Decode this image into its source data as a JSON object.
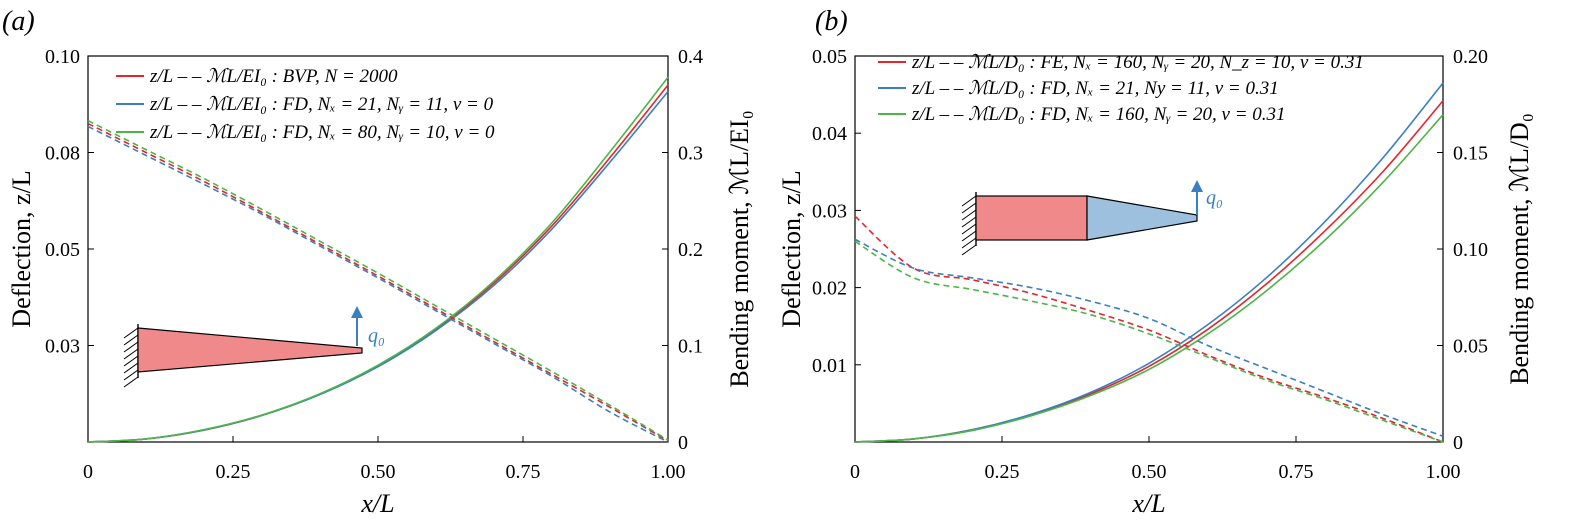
{
  "chart_data": [
    {
      "type": "line",
      "panel_label": "(a)",
      "xlabel": "x/L",
      "ylabel_left": "Deflection, z/L",
      "ylabel_right": "Bending moment, ℳL/EI₀",
      "xlim": [
        0,
        1.0
      ],
      "ylim_left": [
        0,
        0.1
      ],
      "ylim_right": [
        0,
        0.4
      ],
      "x_ticks": [
        "0",
        "0.25",
        "0.50",
        "0.75",
        "1.00"
      ],
      "x_tick_values": [
        0,
        0.25,
        0.5,
        0.75,
        1.0
      ],
      "y_left_ticks": [
        "0.03",
        "0.05",
        "0.08",
        "0.10"
      ],
      "y_left_tick_values": [
        0.025,
        0.05,
        0.075,
        0.1
      ],
      "y_right_ticks": [
        "0",
        "0.1",
        "0.2",
        "0.3",
        "0.4"
      ],
      "y_right_tick_values": [
        0,
        0.1,
        0.2,
        0.3,
        0.4
      ],
      "legend": [
        {
          "text": "z/L  – – ℳL/EI₀ : BVP, N = 2000",
          "color": "#e3262b"
        },
        {
          "text": "z/L  – – ℳL/EI₀ : FD, Nₓ = 21, Nᵧ = 11, ν = 0",
          "color": "#3a7fc1"
        },
        {
          "text": "z/L  – – ℳL/EI₀ : FD, Nₓ = 80, Nᵧ = 10, ν = 0",
          "color": "#4cb548"
        }
      ],
      "x": [
        0,
        0.1,
        0.2,
        0.3,
        0.4,
        0.5,
        0.6,
        0.7,
        0.8,
        0.9,
        1.0
      ],
      "series": [
        {
          "name": "BVP deflection",
          "axis": "left",
          "style": "solid",
          "color": "#e3262b",
          "values": [
            0,
            0.0008,
            0.0031,
            0.0069,
            0.0124,
            0.0197,
            0.0292,
            0.0412,
            0.056,
            0.0737,
            0.0925
          ]
        },
        {
          "name": "FD Nx=21 deflection",
          "axis": "left",
          "style": "solid",
          "color": "#3a7fc1",
          "values": [
            0,
            0.0008,
            0.0031,
            0.0069,
            0.0123,
            0.0195,
            0.0289,
            0.0406,
            0.0552,
            0.0725,
            0.0908
          ]
        },
        {
          "name": "FD Nx=80 deflection",
          "axis": "left",
          "style": "solid",
          "color": "#4cb548",
          "values": [
            0,
            0.0008,
            0.0032,
            0.007,
            0.0125,
            0.0199,
            0.0295,
            0.0417,
            0.0568,
            0.0752,
            0.0945
          ]
        },
        {
          "name": "BVP moment",
          "axis": "right",
          "style": "dashed",
          "color": "#e3262b",
          "values": [
            0.33,
            0.3,
            0.27,
            0.238,
            0.205,
            0.172,
            0.138,
            0.104,
            0.07,
            0.036,
            0.001
          ]
        },
        {
          "name": "FD Nx=21 moment",
          "axis": "right",
          "style": "dashed",
          "color": "#3a7fc1",
          "values": [
            0.327,
            0.297,
            0.267,
            0.236,
            0.203,
            0.17,
            0.136,
            0.102,
            0.068,
            0.031,
            0.0
          ]
        },
        {
          "name": "FD Nx=80 moment",
          "axis": "right",
          "style": "dashed",
          "color": "#4cb548",
          "values": [
            0.333,
            0.303,
            0.273,
            0.241,
            0.208,
            0.175,
            0.141,
            0.107,
            0.073,
            0.038,
            0.002
          ]
        }
      ],
      "inset": {
        "load_label": "q₀",
        "fill": "#f08a8a"
      }
    },
    {
      "type": "line",
      "panel_label": "(b)",
      "xlabel": "x/L",
      "ylabel_left": "Deflection, z/L",
      "ylabel_right": "Bending moment, ℳL/D₀",
      "xlim": [
        0,
        1.0
      ],
      "ylim_left": [
        0,
        0.05
      ],
      "ylim_right": [
        0,
        0.2
      ],
      "x_ticks": [
        "0",
        "0.25",
        "0.50",
        "0.75",
        "1.00"
      ],
      "x_tick_values": [
        0,
        0.25,
        0.5,
        0.75,
        1.0
      ],
      "y_left_ticks": [
        "0.01",
        "0.02",
        "0.03",
        "0.04",
        "0.05"
      ],
      "y_left_tick_values": [
        0.01,
        0.02,
        0.03,
        0.04,
        0.05
      ],
      "y_right_ticks": [
        "0",
        "0.05",
        "0.10",
        "0.15",
        "0.20"
      ],
      "y_right_tick_values": [
        0,
        0.05,
        0.1,
        0.15,
        0.2
      ],
      "legend": [
        {
          "text": "z/L  – – ℳL/D₀ : FE, Nₓ = 160, Nᵧ = 20, N_z = 10, ν = 0.31",
          "color": "#e3262b"
        },
        {
          "text": "z/L  – – ℳL/D₀ : FD, Nₓ = 21, Ny = 11, ν = 0.31",
          "color": "#3a7fc1"
        },
        {
          "text": "z/L  – – ℳL/D₀ : FD, Nₓ = 160, Nᵧ = 20, ν = 0.31",
          "color": "#4cb548"
        }
      ],
      "x": [
        0,
        0.1,
        0.2,
        0.3,
        0.4,
        0.5,
        0.6,
        0.7,
        0.8,
        0.9,
        1.0
      ],
      "series": [
        {
          "name": "FE deflection",
          "axis": "left",
          "style": "solid",
          "color": "#e3262b",
          "values": [
            0,
            0.0004,
            0.0016,
            0.0035,
            0.0062,
            0.0098,
            0.0146,
            0.0205,
            0.0274,
            0.0352,
            0.0442
          ]
        },
        {
          "name": "FD Nx=21 deflection",
          "axis": "left",
          "style": "solid",
          "color": "#3a7fc1",
          "values": [
            0,
            0.0004,
            0.0016,
            0.0036,
            0.0064,
            0.0102,
            0.0152,
            0.0213,
            0.0286,
            0.037,
            0.0465
          ]
        },
        {
          "name": "FD Nx=160 deflection",
          "axis": "left",
          "style": "solid",
          "color": "#4cb548",
          "values": [
            0,
            0.0004,
            0.0015,
            0.0034,
            0.006,
            0.0094,
            0.014,
            0.0196,
            0.0262,
            0.0338,
            0.0424
          ]
        },
        {
          "name": "FE moment",
          "axis": "right",
          "style": "dashed",
          "color": "#e3262b",
          "values": [
            0.117,
            0.09,
            0.084,
            0.077,
            0.068,
            0.058,
            0.045,
            0.033,
            0.023,
            0.012,
            0.0
          ]
        },
        {
          "name": "FD Nx=21 moment",
          "axis": "right",
          "style": "dashed",
          "color": "#3a7fc1",
          "values": [
            0.105,
            0.09,
            0.085,
            0.08,
            0.073,
            0.064,
            0.05,
            0.038,
            0.026,
            0.014,
            0.003
          ]
        },
        {
          "name": "FD Nx=160 moment",
          "axis": "right",
          "style": "dashed",
          "color": "#4cb548",
          "values": [
            0.104,
            0.085,
            0.079,
            0.073,
            0.066,
            0.056,
            0.044,
            0.032,
            0.022,
            0.011,
            0.0
          ]
        }
      ],
      "inset": {
        "load_label": "q₀",
        "fill_left": "#f08a8a",
        "fill_right": "#9dc0de"
      }
    }
  ]
}
